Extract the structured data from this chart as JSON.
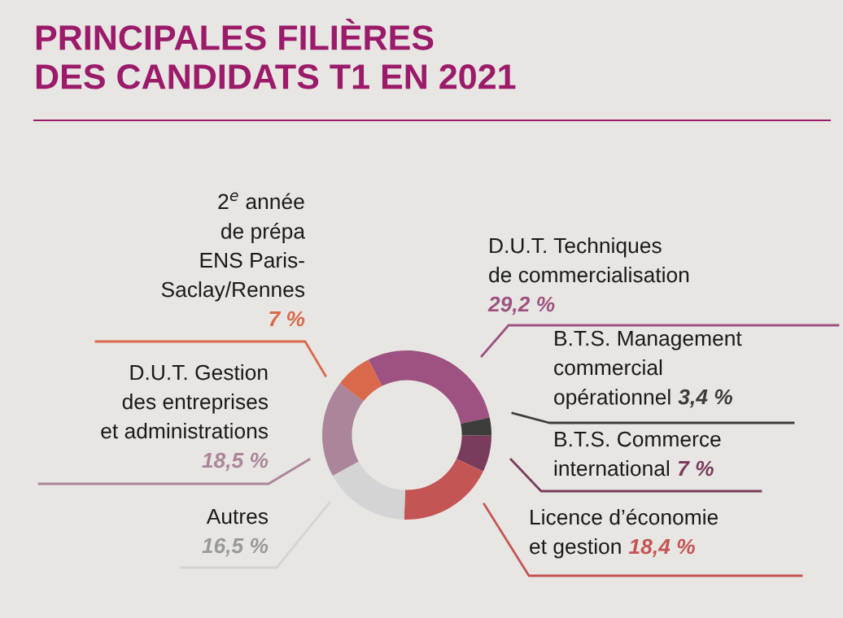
{
  "chart_data": {
    "type": "donut",
    "title": "PRINCIPALES FILIÈRES\nDES CANDIDATS T1 EN 2021",
    "categories": [
      "D.U.T. Techniques\nde commercialisation",
      "B.T.S. Management\ncommercial\nopérationnel",
      "B.T.S. Commerce\ninternational",
      "Licence d’économie\net gestion",
      "Autres",
      "D.U.T. Gestion\ndes entreprises\net administrations",
      "2$^{e}$ année\nde prépa\nENS Paris-\nSaclay/Rennes"
    ],
    "values": [
      29.2,
      3.4,
      7,
      18.4,
      16.5,
      18.5,
      7
    ],
    "value_labels": [
      "29,2 %",
      "3,4 %",
      "7 %",
      "18,4 %",
      "16,5 %",
      "18,5 %",
      "7 %"
    ],
    "colors": [
      "#9e5282",
      "#3c3c3a",
      "#7a3c5c",
      "#c45555",
      "#d4d4d4",
      "#ab8599",
      "#d9694a"
    ]
  }
}
